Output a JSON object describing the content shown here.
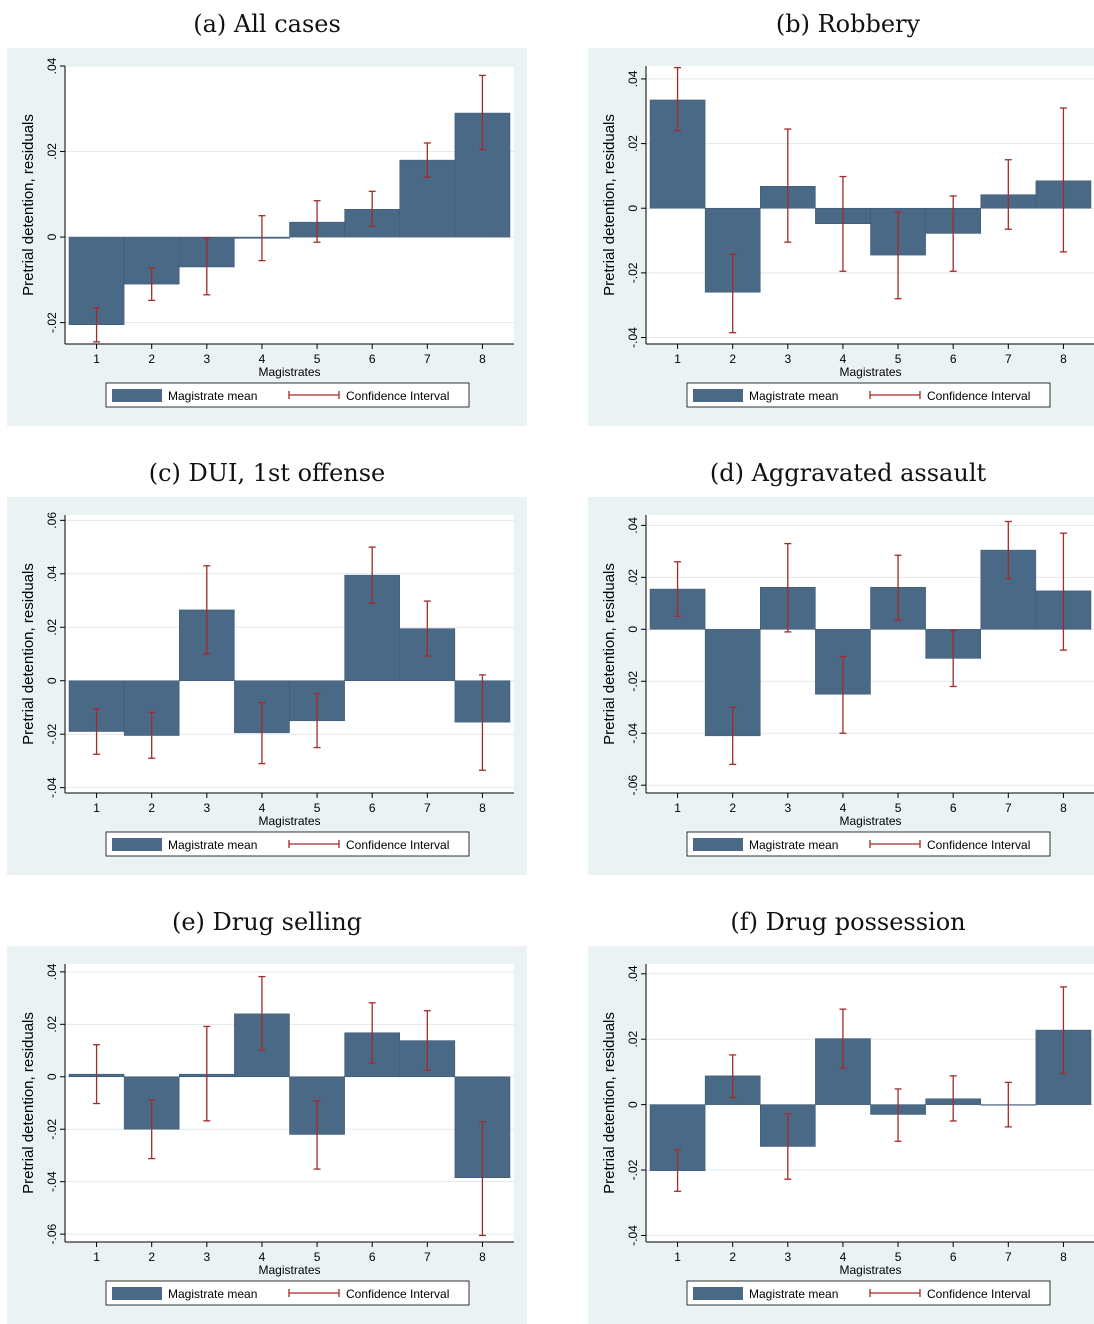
{
  "colors": {
    "background": "#EAF2F3",
    "bar": "#4A6986",
    "bar_edge": "#3A5570",
    "ci": "#A32A2A",
    "grid": "#E3E9EE"
  },
  "legend": {
    "bar_label": "Magistrate mean",
    "ci_label": "Confidence Interval"
  },
  "chart_data": [
    {
      "type": "bar",
      "title": "(a) All cases",
      "xlabel": "Magistrates",
      "ylabel": "Pretrial detention, residuals",
      "categories": [
        "1",
        "2",
        "3",
        "4",
        "5",
        "6",
        "7",
        "8"
      ],
      "ylim": [
        -0.025,
        0.04
      ],
      "yticks": [
        -0.02,
        0,
        0.02,
        0.04
      ],
      "ytick_labels": [
        "-.02",
        "0",
        ".02",
        ".04"
      ],
      "values": [
        -0.0205,
        -0.011,
        -0.007,
        -0.0003,
        0.0035,
        0.0065,
        0.018,
        0.029
      ],
      "ci_low": [
        -0.0245,
        -0.0148,
        -0.0135,
        -0.0055,
        -0.0012,
        0.0025,
        0.014,
        0.0205
      ],
      "ci_high": [
        -0.0165,
        -0.0072,
        -0.0002,
        0.005,
        0.0085,
        0.0107,
        0.022,
        0.0378
      ],
      "grid": true,
      "legend_position": "bottom"
    },
    {
      "type": "bar",
      "title": "(b) Robbery",
      "xlabel": "Magistrates",
      "ylabel": "Pretrial detention, residuals",
      "categories": [
        "1",
        "2",
        "3",
        "4",
        "5",
        "6",
        "7",
        "8"
      ],
      "ylim": [
        -0.042,
        0.044
      ],
      "yticks": [
        -0.04,
        -0.02,
        0,
        0.02,
        0.04
      ],
      "ytick_labels": [
        "-.04",
        "-.02",
        "0",
        ".02",
        ".04"
      ],
      "values": [
        0.0335,
        -0.026,
        0.0068,
        -0.0048,
        -0.0145,
        -0.0078,
        0.0042,
        0.0085
      ],
      "ci_low": [
        0.024,
        -0.0385,
        -0.0105,
        -0.0195,
        -0.028,
        -0.0195,
        -0.0065,
        -0.0135
      ],
      "ci_high": [
        0.0435,
        -0.0142,
        0.0245,
        0.0098,
        -0.0012,
        0.0038,
        0.015,
        0.031
      ],
      "grid": true,
      "legend_position": "bottom"
    },
    {
      "type": "bar",
      "title": "(c) DUI, 1st offense",
      "xlabel": "Magistrates",
      "ylabel": "Pretrial detention, residuals",
      "categories": [
        "1",
        "2",
        "3",
        "4",
        "5",
        "6",
        "7",
        "8"
      ],
      "ylim": [
        -0.042,
        0.062
      ],
      "yticks": [
        -0.04,
        -0.02,
        0,
        0.02,
        0.04,
        0.06
      ],
      "ytick_labels": [
        "-.04",
        "-.02",
        "0",
        ".02",
        ".04",
        ".06"
      ],
      "values": [
        -0.019,
        -0.0205,
        0.0265,
        -0.0195,
        -0.015,
        0.0395,
        0.0195,
        -0.0155
      ],
      "ci_low": [
        -0.0275,
        -0.029,
        0.01,
        -0.031,
        -0.025,
        0.029,
        0.0092,
        -0.0335
      ],
      "ci_high": [
        -0.0105,
        -0.0118,
        0.043,
        -0.0082,
        -0.0048,
        0.05,
        0.0298,
        0.0022
      ],
      "grid": true,
      "legend_position": "bottom"
    },
    {
      "type": "bar",
      "title": "(d) Aggravated assault",
      "xlabel": "Magistrates",
      "ylabel": "Pretrial detention, residuals",
      "categories": [
        "1",
        "2",
        "3",
        "4",
        "5",
        "6",
        "7",
        "8"
      ],
      "ylim": [
        -0.063,
        0.044
      ],
      "yticks": [
        -0.06,
        -0.04,
        -0.02,
        0,
        0.02,
        0.04
      ],
      "ytick_labels": [
        "-.06",
        "-.04",
        "-.02",
        "0",
        ".02",
        ".04"
      ],
      "values": [
        0.0155,
        -0.041,
        0.0162,
        -0.025,
        0.0162,
        -0.0112,
        0.0305,
        0.0148
      ],
      "ci_low": [
        0.005,
        -0.052,
        -0.001,
        -0.04,
        0.0035,
        -0.022,
        0.0195,
        -0.008
      ],
      "ci_high": [
        0.026,
        -0.03,
        0.033,
        -0.0105,
        0.0285,
        -0.0005,
        0.0415,
        0.037
      ],
      "grid": true,
      "legend_position": "bottom"
    },
    {
      "type": "bar",
      "title": "(e) Drug selling",
      "xlabel": "Magistrates",
      "ylabel": "Pretrial detention, residuals",
      "categories": [
        "1",
        "2",
        "3",
        "4",
        "5",
        "6",
        "7",
        "8"
      ],
      "ylim": [
        -0.063,
        0.043
      ],
      "yticks": [
        -0.06,
        -0.04,
        -0.02,
        0,
        0.02,
        0.04
      ],
      "ytick_labels": [
        "-.06",
        "-.04",
        "-.02",
        "0",
        ".02",
        ".04"
      ],
      "values": [
        0.001,
        -0.02,
        0.001,
        0.024,
        -0.022,
        0.0168,
        0.0138,
        -0.0385
      ],
      "ci_low": [
        -0.0102,
        -0.0312,
        -0.0168,
        0.0102,
        -0.0352,
        0.0052,
        0.0025,
        -0.0605
      ],
      "ci_high": [
        0.0122,
        -0.0088,
        0.0192,
        0.0382,
        -0.0092,
        0.0282,
        0.0252,
        -0.0172
      ],
      "grid": true,
      "legend_position": "bottom"
    },
    {
      "type": "bar",
      "title": "(f) Drug possession",
      "xlabel": "Magistrates",
      "ylabel": "Pretrial detention, residuals",
      "categories": [
        "1",
        "2",
        "3",
        "4",
        "5",
        "6",
        "7",
        "8"
      ],
      "ylim": [
        -0.042,
        0.043
      ],
      "yticks": [
        -0.04,
        -0.02,
        0,
        0.02,
        0.04
      ],
      "ytick_labels": [
        "-.04",
        "-.02",
        "0",
        ".02",
        ".04"
      ],
      "values": [
        -0.0202,
        0.0088,
        -0.0128,
        0.0202,
        -0.003,
        0.0018,
        0.0,
        0.0228
      ],
      "ci_low": [
        -0.0265,
        0.0022,
        -0.0228,
        0.0112,
        -0.0112,
        -0.005,
        -0.0068,
        0.0095
      ],
      "ci_high": [
        -0.0138,
        0.0152,
        -0.0028,
        0.0292,
        0.0048,
        0.0088,
        0.0068,
        0.036
      ],
      "grid": true,
      "legend_position": "bottom"
    }
  ]
}
